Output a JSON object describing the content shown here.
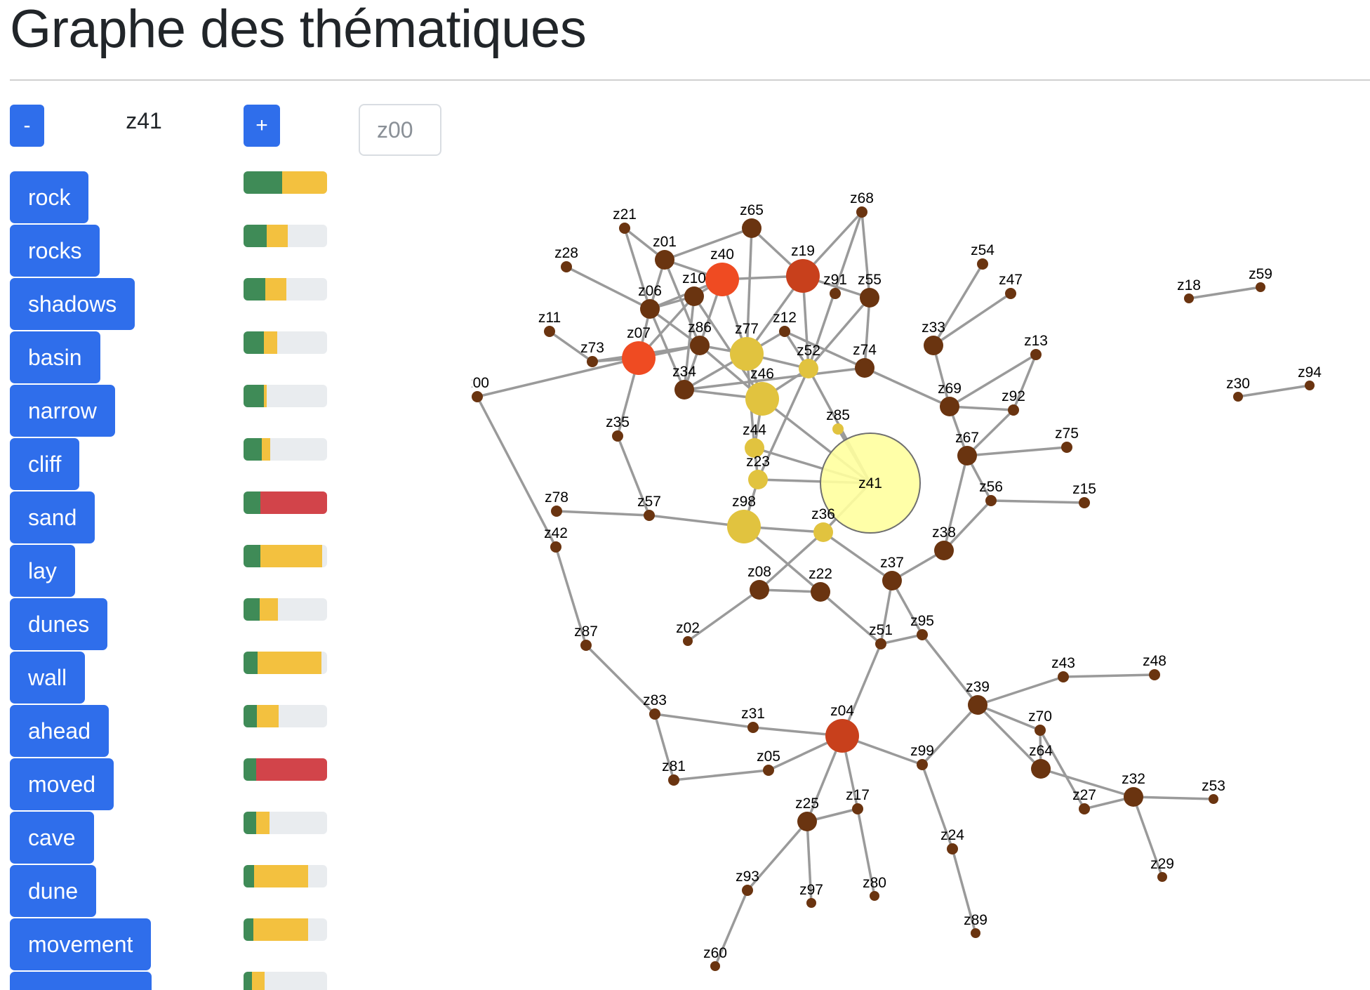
{
  "page": {
    "title": "Graphe des thématiques"
  },
  "controls": {
    "minus_label": "-",
    "plus_label": "+",
    "current_topic": "z41",
    "input_placeholder": "z00"
  },
  "words": [
    {
      "label": "rock",
      "green": 0.46,
      "yellow": 0.54,
      "red": 0
    },
    {
      "label": "rocks",
      "green": 0.28,
      "yellow": 0.25,
      "red": 0
    },
    {
      "label": "shadows",
      "green": 0.26,
      "yellow": 0.25,
      "red": 0
    },
    {
      "label": "basin",
      "green": 0.24,
      "yellow": 0.16,
      "red": 0
    },
    {
      "label": "narrow",
      "green": 0.24,
      "yellow": 0.04,
      "red": 0
    },
    {
      "label": "cliff",
      "green": 0.22,
      "yellow": 0.1,
      "red": 0
    },
    {
      "label": "sand",
      "green": 0.2,
      "yellow": 0,
      "red": 0.8
    },
    {
      "label": "lay",
      "green": 0.2,
      "yellow": 0.74,
      "red": 0
    },
    {
      "label": "dunes",
      "green": 0.19,
      "yellow": 0.22,
      "red": 0
    },
    {
      "label": "wall",
      "green": 0.17,
      "yellow": 0.76,
      "red": 0
    },
    {
      "label": "ahead",
      "green": 0.16,
      "yellow": 0.26,
      "red": 0
    },
    {
      "label": "moved",
      "green": 0.15,
      "yellow": 0,
      "red": 0.85
    },
    {
      "label": "cave",
      "green": 0.15,
      "yellow": 0.16,
      "red": 0
    },
    {
      "label": "dune",
      "green": 0.13,
      "yellow": 0.64,
      "red": 0
    },
    {
      "label": "movement",
      "green": 0.12,
      "yellow": 0.65,
      "red": 0
    },
    {
      "label": "",
      "green": 0.1,
      "yellow": 0.15,
      "red": 0
    }
  ],
  "graph": {
    "center_node": "z41",
    "nodes": [
      {
        "id": "z21",
        "size": "small",
        "color": "dark"
      },
      {
        "id": "z65",
        "size": "medium",
        "color": "dark"
      },
      {
        "id": "z68",
        "size": "small",
        "color": "dark"
      },
      {
        "id": "z01",
        "size": "medium",
        "color": "dark"
      },
      {
        "id": "z40",
        "size": "large",
        "color": "bright"
      },
      {
        "id": "z19",
        "size": "large",
        "color": "red"
      },
      {
        "id": "z28",
        "size": "small",
        "color": "dark"
      },
      {
        "id": "z10",
        "size": "medium",
        "color": "dark"
      },
      {
        "id": "z91",
        "size": "small",
        "color": "dark"
      },
      {
        "id": "z55",
        "size": "medium",
        "color": "dark"
      },
      {
        "id": "z54",
        "size": "small",
        "color": "dark"
      },
      {
        "id": "z47",
        "size": "small",
        "color": "dark"
      },
      {
        "id": "z06",
        "size": "medium",
        "color": "dark"
      },
      {
        "id": "z11",
        "size": "small",
        "color": "dark"
      },
      {
        "id": "z86",
        "size": "medium",
        "color": "dark"
      },
      {
        "id": "z77",
        "size": "large",
        "color": "yellow"
      },
      {
        "id": "z12",
        "size": "small",
        "color": "dark"
      },
      {
        "id": "z07",
        "size": "large",
        "color": "bright"
      },
      {
        "id": "z73",
        "size": "small",
        "color": "dark"
      },
      {
        "id": "z52",
        "size": "medium",
        "color": "yellow"
      },
      {
        "id": "z74",
        "size": "medium",
        "color": "dark"
      },
      {
        "id": "z33",
        "size": "medium",
        "color": "dark"
      },
      {
        "id": "z13",
        "size": "small",
        "color": "dark"
      },
      {
        "id": "z34",
        "size": "medium",
        "color": "dark"
      },
      {
        "id": "z46",
        "size": "large",
        "color": "yellow"
      },
      {
        "id": "z00",
        "size": "small",
        "color": "dark"
      },
      {
        "id": "z69",
        "size": "medium",
        "color": "dark"
      },
      {
        "id": "z92",
        "size": "small",
        "color": "dark"
      },
      {
        "id": "z85",
        "size": "small",
        "color": "yellow"
      },
      {
        "id": "z35",
        "size": "small",
        "color": "dark"
      },
      {
        "id": "z44",
        "size": "medium",
        "color": "yellow"
      },
      {
        "id": "z67",
        "size": "medium",
        "color": "dark"
      },
      {
        "id": "z75",
        "size": "small",
        "color": "dark"
      },
      {
        "id": "z23",
        "size": "medium",
        "color": "yellow"
      },
      {
        "id": "z41",
        "size": "center",
        "color": "pale"
      },
      {
        "id": "z56",
        "size": "small",
        "color": "dark"
      },
      {
        "id": "z15",
        "size": "small",
        "color": "dark"
      },
      {
        "id": "z57",
        "size": "small",
        "color": "dark"
      },
      {
        "id": "z98",
        "size": "large",
        "color": "yellow"
      },
      {
        "id": "z36",
        "size": "medium",
        "color": "yellow"
      },
      {
        "id": "z78",
        "size": "small",
        "color": "dark"
      },
      {
        "id": "z42",
        "size": "small",
        "color": "dark"
      },
      {
        "id": "z38",
        "size": "medium",
        "color": "dark"
      },
      {
        "id": "z37",
        "size": "medium",
        "color": "dark"
      },
      {
        "id": "z08",
        "size": "medium",
        "color": "dark"
      },
      {
        "id": "z22",
        "size": "medium",
        "color": "dark"
      },
      {
        "id": "z87",
        "size": "small",
        "color": "dark"
      },
      {
        "id": "z02",
        "size": "tiny",
        "color": "dark"
      },
      {
        "id": "z51",
        "size": "small",
        "color": "dark"
      },
      {
        "id": "z95",
        "size": "small",
        "color": "dark"
      },
      {
        "id": "z43",
        "size": "small",
        "color": "dark"
      },
      {
        "id": "z48",
        "size": "small",
        "color": "dark"
      },
      {
        "id": "z39",
        "size": "medium",
        "color": "dark"
      },
      {
        "id": "z83",
        "size": "small",
        "color": "dark"
      },
      {
        "id": "z31",
        "size": "small",
        "color": "dark"
      },
      {
        "id": "z04",
        "size": "large",
        "color": "red"
      },
      {
        "id": "z70",
        "size": "small",
        "color": "dark"
      },
      {
        "id": "z64",
        "size": "medium",
        "color": "dark"
      },
      {
        "id": "z99",
        "size": "small",
        "color": "dark"
      },
      {
        "id": "z81",
        "size": "small",
        "color": "dark"
      },
      {
        "id": "z05",
        "size": "small",
        "color": "dark"
      },
      {
        "id": "z32",
        "size": "medium",
        "color": "dark"
      },
      {
        "id": "z53",
        "size": "tiny",
        "color": "dark"
      },
      {
        "id": "z27",
        "size": "small",
        "color": "dark"
      },
      {
        "id": "z25",
        "size": "medium",
        "color": "dark"
      },
      {
        "id": "z17",
        "size": "small",
        "color": "dark"
      },
      {
        "id": "z24",
        "size": "small",
        "color": "dark"
      },
      {
        "id": "z29",
        "size": "tiny",
        "color": "dark"
      },
      {
        "id": "z93",
        "size": "small",
        "color": "dark"
      },
      {
        "id": "z97",
        "size": "tiny",
        "color": "dark"
      },
      {
        "id": "z80",
        "size": "tiny",
        "color": "dark"
      },
      {
        "id": "z89",
        "size": "tiny",
        "color": "dark"
      },
      {
        "id": "z60",
        "size": "tiny",
        "color": "dark"
      },
      {
        "id": "z18",
        "size": "tiny",
        "color": "dark"
      },
      {
        "id": "z59",
        "size": "tiny",
        "color": "dark"
      },
      {
        "id": "z30",
        "size": "tiny",
        "color": "dark"
      },
      {
        "id": "z94",
        "size": "tiny",
        "color": "dark"
      }
    ],
    "edges": [
      [
        "z21",
        "z01"
      ],
      [
        "z21",
        "z06"
      ],
      [
        "z65",
        "z01"
      ],
      [
        "z65",
        "z77"
      ],
      [
        "z65",
        "z19"
      ],
      [
        "z68",
        "z19"
      ],
      [
        "z68",
        "z55"
      ],
      [
        "z68",
        "z52"
      ],
      [
        "z01",
        "z40"
      ],
      [
        "z01",
        "z06"
      ],
      [
        "z01",
        "z86"
      ],
      [
        "z40",
        "z10"
      ],
      [
        "z40",
        "z19"
      ],
      [
        "z40",
        "z77"
      ],
      [
        "z40",
        "z86"
      ],
      [
        "z40",
        "z06"
      ],
      [
        "z19",
        "z77"
      ],
      [
        "z19",
        "z55"
      ],
      [
        "z19",
        "z52"
      ],
      [
        "z28",
        "z06"
      ],
      [
        "z10",
        "z07"
      ],
      [
        "z10",
        "z06"
      ],
      [
        "z10",
        "z46"
      ],
      [
        "z10",
        "z34"
      ],
      [
        "z55",
        "z74"
      ],
      [
        "z55",
        "z52"
      ],
      [
        "z54",
        "z33"
      ],
      [
        "z47",
        "z33"
      ],
      [
        "z06",
        "z07"
      ],
      [
        "z06",
        "z34"
      ],
      [
        "z06",
        "z86"
      ],
      [
        "z11",
        "z73"
      ],
      [
        "z73",
        "z07"
      ],
      [
        "z73",
        "z86"
      ],
      [
        "z07",
        "z86"
      ],
      [
        "z07",
        "z35"
      ],
      [
        "z07",
        "z00"
      ],
      [
        "z86",
        "z77"
      ],
      [
        "z86",
        "z46"
      ],
      [
        "z86",
        "z34"
      ],
      [
        "z77",
        "z46"
      ],
      [
        "z77",
        "z12"
      ],
      [
        "z77",
        "z34"
      ],
      [
        "z77",
        "z52"
      ],
      [
        "z77",
        "z44"
      ],
      [
        "z12",
        "z52"
      ],
      [
        "z12",
        "z74"
      ],
      [
        "z52",
        "z46"
      ],
      [
        "z52",
        "z23"
      ],
      [
        "z52",
        "z41"
      ],
      [
        "z74",
        "z69"
      ],
      [
        "z74",
        "z34"
      ],
      [
        "z33",
        "z69"
      ],
      [
        "z13",
        "z69"
      ],
      [
        "z13",
        "z92"
      ],
      [
        "z69",
        "z92"
      ],
      [
        "z69",
        "z67"
      ],
      [
        "z92",
        "z67"
      ],
      [
        "z34",
        "z46"
      ],
      [
        "z46",
        "z44"
      ],
      [
        "z46",
        "z41"
      ],
      [
        "z85",
        "z41"
      ],
      [
        "z44",
        "z41"
      ],
      [
        "z44",
        "z23"
      ],
      [
        "z23",
        "z41"
      ],
      [
        "z23",
        "z98"
      ],
      [
        "z67",
        "z75"
      ],
      [
        "z67",
        "z56"
      ],
      [
        "z67",
        "z38"
      ],
      [
        "z56",
        "z15"
      ],
      [
        "z56",
        "z38"
      ],
      [
        "z35",
        "z57"
      ],
      [
        "z57",
        "z98"
      ],
      [
        "z57",
        "z78"
      ],
      [
        "z98",
        "z36"
      ],
      [
        "z98",
        "z22"
      ],
      [
        "z36",
        "z41"
      ],
      [
        "z36",
        "z08"
      ],
      [
        "z36",
        "z37"
      ],
      [
        "z38",
        "z37"
      ],
      [
        "z37",
        "z51"
      ],
      [
        "z37",
        "z95"
      ],
      [
        "z08",
        "z22"
      ],
      [
        "z08",
        "z02"
      ],
      [
        "z22",
        "z51"
      ],
      [
        "z42",
        "z87"
      ],
      [
        "z00",
        "z42"
      ],
      [
        "z87",
        "z83"
      ],
      [
        "z51",
        "z04"
      ],
      [
        "z95",
        "z39"
      ],
      [
        "z95",
        "z51"
      ],
      [
        "z39",
        "z43"
      ],
      [
        "z43",
        "z48"
      ],
      [
        "z39",
        "z70"
      ],
      [
        "z39",
        "z64"
      ],
      [
        "z39",
        "z99"
      ],
      [
        "z83",
        "z31"
      ],
      [
        "z83",
        "z81"
      ],
      [
        "z31",
        "z04"
      ],
      [
        "z81",
        "z05"
      ],
      [
        "z05",
        "z04"
      ],
      [
        "z04",
        "z99"
      ],
      [
        "z04",
        "z25"
      ],
      [
        "z04",
        "z17"
      ],
      [
        "z70",
        "z27"
      ],
      [
        "z70",
        "z64"
      ],
      [
        "z64",
        "z32"
      ],
      [
        "z32",
        "z53"
      ],
      [
        "z32",
        "z27"
      ],
      [
        "z32",
        "z29"
      ],
      [
        "z99",
        "z24"
      ],
      [
        "z24",
        "z89"
      ],
      [
        "z25",
        "z17"
      ],
      [
        "z25",
        "z93"
      ],
      [
        "z25",
        "z97"
      ],
      [
        "z17",
        "z80"
      ],
      [
        "z93",
        "z60"
      ],
      [
        "z18",
        "z59"
      ],
      [
        "z30",
        "z94"
      ]
    ]
  },
  "colors": {
    "button_blue": "#2f6eeb",
    "bar_green": "#3f8b57",
    "bar_yellow": "#f3c13f",
    "bar_red": "#d2444a",
    "node_dark": "#6a3410",
    "node_red": "#c8401c",
    "node_bright": "#ef4b22",
    "node_yellow": "#e1c33f",
    "node_pale": "#ffff9e",
    "edge": "#9a9a9a"
  }
}
